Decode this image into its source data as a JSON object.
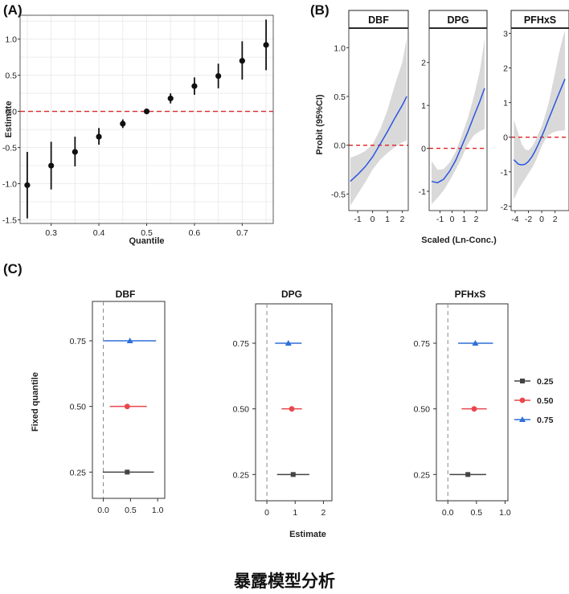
{
  "caption": "暴露模型分析",
  "chart_data": [
    {
      "type": "scatter",
      "panel_label": "(A)",
      "xlabel": "Quantile",
      "ylabel": "Estimate",
      "xlim": [
        0.235,
        0.765
      ],
      "ylim": [
        -1.55,
        1.33
      ],
      "xticks": [
        "0.3",
        "0.4",
        "0.5",
        "0.6",
        "0.7"
      ],
      "yticks": [
        "-1.5",
        "-1.0",
        "-0.5",
        "0.0",
        "0.5",
        "1.0"
      ],
      "reference_line": 0,
      "grid": true,
      "points": [
        {
          "x": 0.25,
          "y": -1.02,
          "lo": -1.48,
          "hi": -0.56
        },
        {
          "x": 0.3,
          "y": -0.75,
          "lo": -1.08,
          "hi": -0.42
        },
        {
          "x": 0.35,
          "y": -0.56,
          "lo": -0.76,
          "hi": -0.35
        },
        {
          "x": 0.4,
          "y": -0.35,
          "lo": -0.46,
          "hi": -0.23
        },
        {
          "x": 0.45,
          "y": -0.17,
          "lo": -0.23,
          "hi": -0.11
        },
        {
          "x": 0.5,
          "y": 0.0,
          "lo": -0.03,
          "hi": 0.03
        },
        {
          "x": 0.55,
          "y": 0.18,
          "lo": 0.11,
          "hi": 0.25
        },
        {
          "x": 0.6,
          "y": 0.35,
          "lo": 0.23,
          "hi": 0.47
        },
        {
          "x": 0.65,
          "y": 0.49,
          "lo": 0.32,
          "hi": 0.66
        },
        {
          "x": 0.7,
          "y": 0.7,
          "lo": 0.44,
          "hi": 0.97
        },
        {
          "x": 0.75,
          "y": 0.92,
          "lo": 0.57,
          "hi": 1.27
        }
      ]
    },
    {
      "type": "line",
      "panel_label": "(B)",
      "ylabel": "Probit (95%CI)",
      "xlabel": "Scaled (Ln-Conc.)",
      "reference_line": 0,
      "facets": [
        {
          "name": "DBF",
          "xlim": [
            -1.6,
            2.4
          ],
          "ylim": [
            -0.67,
            1.2
          ],
          "xticks": [
            "-1",
            "0",
            "1",
            "2"
          ],
          "yticks": [
            "-0.5",
            "0.0",
            "0.5",
            "1.0"
          ],
          "x": [
            -1.5,
            -1.0,
            -0.5,
            0.0,
            0.5,
            1.0,
            1.5,
            2.0,
            2.3
          ],
          "y": [
            -0.37,
            -0.3,
            -0.22,
            -0.12,
            0.01,
            0.14,
            0.28,
            0.41,
            0.5
          ],
          "lower": [
            -0.62,
            -0.5,
            -0.38,
            -0.25,
            -0.15,
            -0.08,
            -0.02,
            0.03,
            0.05
          ],
          "upper": [
            -0.13,
            -0.1,
            -0.06,
            0.01,
            0.16,
            0.36,
            0.62,
            0.85,
            1.1
          ]
        },
        {
          "name": "DPG",
          "xlim": [
            -1.9,
            2.9
          ],
          "ylim": [
            -1.45,
            2.8
          ],
          "xticks": [
            "-1",
            "0",
            "1",
            "2"
          ],
          "yticks": [
            "-1",
            "0",
            "1",
            "2"
          ],
          "x": [
            -1.7,
            -1.2,
            -0.7,
            -0.2,
            0.3,
            0.8,
            1.3,
            1.8,
            2.3,
            2.7
          ],
          "y": [
            -0.77,
            -0.8,
            -0.72,
            -0.53,
            -0.28,
            0.05,
            0.38,
            0.74,
            1.09,
            1.4
          ],
          "lower": [
            -1.3,
            -1.15,
            -0.98,
            -0.75,
            -0.5,
            -0.22,
            0.1,
            0.3,
            0.4,
            0.45
          ],
          "upper": [
            -0.3,
            -0.5,
            -0.48,
            -0.33,
            -0.08,
            0.3,
            0.7,
            1.2,
            1.8,
            2.55
          ]
        },
        {
          "name": "PFHxS",
          "xlim": [
            -4.6,
            4.1
          ],
          "ylim": [
            -2.12,
            3.15
          ],
          "xticks": [
            "-4",
            "-2",
            "0",
            "2"
          ],
          "yticks": [
            "-2",
            "-1",
            "0",
            "1",
            "2",
            "3"
          ],
          "x": [
            -4.2,
            -3.5,
            -3.0,
            -2.5,
            -2.0,
            -1.5,
            -1.0,
            -0.5,
            0.0,
            0.5,
            1.0,
            1.5,
            2.0,
            2.5,
            3.0,
            3.5
          ],
          "y": [
            -0.65,
            -0.78,
            -0.8,
            -0.78,
            -0.7,
            -0.57,
            -0.4,
            -0.2,
            0.02,
            0.25,
            0.5,
            0.74,
            0.98,
            1.22,
            1.45,
            1.68
          ],
          "lower": [
            -1.8,
            -1.5,
            -1.35,
            -1.2,
            -1.05,
            -0.9,
            -0.72,
            -0.5,
            -0.25,
            -0.08,
            0.05,
            0.12,
            0.16,
            0.18,
            0.19,
            0.2
          ],
          "upper": [
            0.5,
            0.1,
            -0.2,
            -0.35,
            -0.38,
            -0.28,
            -0.12,
            0.1,
            0.32,
            0.62,
            0.95,
            1.4,
            1.85,
            2.35,
            2.75,
            3.1
          ]
        }
      ]
    },
    {
      "type": "scatter",
      "panel_label": "(C)",
      "ylabel": "Fixed quantile",
      "xlabel": "Estimate",
      "yticks": [
        "0.25",
        "0.50",
        "0.75"
      ],
      "reference_line": 0,
      "legend": [
        {
          "label": "0.25",
          "color": "#444444",
          "marker": "square"
        },
        {
          "label": "0.50",
          "color": "#e8474d",
          "marker": "circle"
        },
        {
          "label": "0.75",
          "color": "#2e6fd8",
          "marker": "triangle"
        }
      ],
      "facets": [
        {
          "name": "DBF",
          "xlim": [
            -0.2,
            1.13
          ],
          "xticks": [
            "0.0",
            "0.5",
            "1.0"
          ],
          "series": [
            {
              "name": "0.25",
              "q": 0.25,
              "est": 0.44,
              "lo": -0.01,
              "hi": 0.93
            },
            {
              "name": "0.50",
              "q": 0.5,
              "est": 0.44,
              "lo": 0.12,
              "hi": 0.8
            },
            {
              "name": "0.75",
              "q": 0.75,
              "est": 0.49,
              "lo": 0.01,
              "hi": 0.97
            }
          ]
        },
        {
          "name": "DPG",
          "xlim": [
            -0.4,
            2.3
          ],
          "xticks": [
            "0",
            "1",
            "2"
          ],
          "series": [
            {
              "name": "0.25",
              "q": 0.25,
              "est": 0.93,
              "lo": 0.36,
              "hi": 1.5
            },
            {
              "name": "0.50",
              "q": 0.5,
              "est": 0.88,
              "lo": 0.52,
              "hi": 1.24
            },
            {
              "name": "0.75",
              "q": 0.75,
              "est": 0.76,
              "lo": 0.29,
              "hi": 1.23
            }
          ]
        },
        {
          "name": "PFHxS",
          "xlim": [
            -0.2,
            1.05
          ],
          "xticks": [
            "0.0",
            "0.5",
            "1.0"
          ],
          "series": [
            {
              "name": "0.25",
              "q": 0.25,
              "est": 0.35,
              "lo": 0.03,
              "hi": 0.67
            },
            {
              "name": "0.50",
              "q": 0.5,
              "est": 0.46,
              "lo": 0.24,
              "hi": 0.68
            },
            {
              "name": "0.75",
              "q": 0.75,
              "est": 0.48,
              "lo": 0.18,
              "hi": 0.79
            }
          ]
        }
      ]
    }
  ]
}
